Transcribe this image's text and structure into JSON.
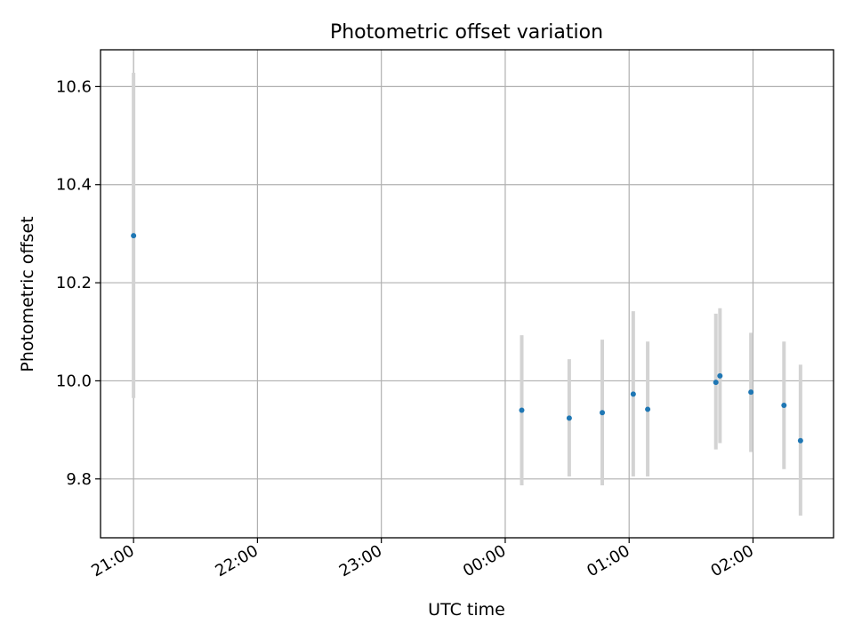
{
  "chart_data": {
    "type": "scatter",
    "title": "Photometric offset variation",
    "xlabel": "UTC time",
    "ylabel": "Photometric offset",
    "x_tick_labels": [
      "21:00",
      "22:00",
      "23:00",
      "00:00",
      "01:00",
      "02:00"
    ],
    "y_tick_labels": [
      "9.8",
      "10.0",
      "10.2",
      "10.4",
      "10.6"
    ],
    "y_ticks": [
      9.8,
      10.0,
      10.2,
      10.4,
      10.6
    ],
    "ylim": [
      9.68,
      10.675
    ],
    "xlim": [
      "20:44",
      "02:39"
    ],
    "grid": true,
    "colors": {
      "point": "#1f77b4",
      "errorbar": "#d3d3d3",
      "grid": "#b0b0b0"
    },
    "series": [
      {
        "points": [
          {
            "x": "21:00",
            "y": 10.296,
            "ylow": 9.965,
            "yhigh": 10.628
          },
          {
            "x": "00:08",
            "y": 9.94,
            "ylow": 9.787,
            "yhigh": 10.093
          },
          {
            "x": "00:31",
            "y": 9.924,
            "ylow": 9.805,
            "yhigh": 10.044
          },
          {
            "x": "00:47",
            "y": 9.935,
            "ylow": 9.787,
            "yhigh": 10.084
          },
          {
            "x": "01:02",
            "y": 9.973,
            "ylow": 9.805,
            "yhigh": 10.142
          },
          {
            "x": "01:09",
            "y": 9.942,
            "ylow": 9.805,
            "yhigh": 10.08
          },
          {
            "x": "01:42",
            "y": 9.997,
            "ylow": 9.86,
            "yhigh": 10.137
          },
          {
            "x": "01:44",
            "y": 10.01,
            "ylow": 9.873,
            "yhigh": 10.148
          },
          {
            "x": "01:59",
            "y": 9.977,
            "ylow": 9.855,
            "yhigh": 10.098
          },
          {
            "x": "02:15",
            "y": 9.95,
            "ylow": 9.82,
            "yhigh": 10.08
          },
          {
            "x": "02:23",
            "y": 9.878,
            "ylow": 9.725,
            "yhigh": 10.033
          }
        ]
      }
    ]
  }
}
